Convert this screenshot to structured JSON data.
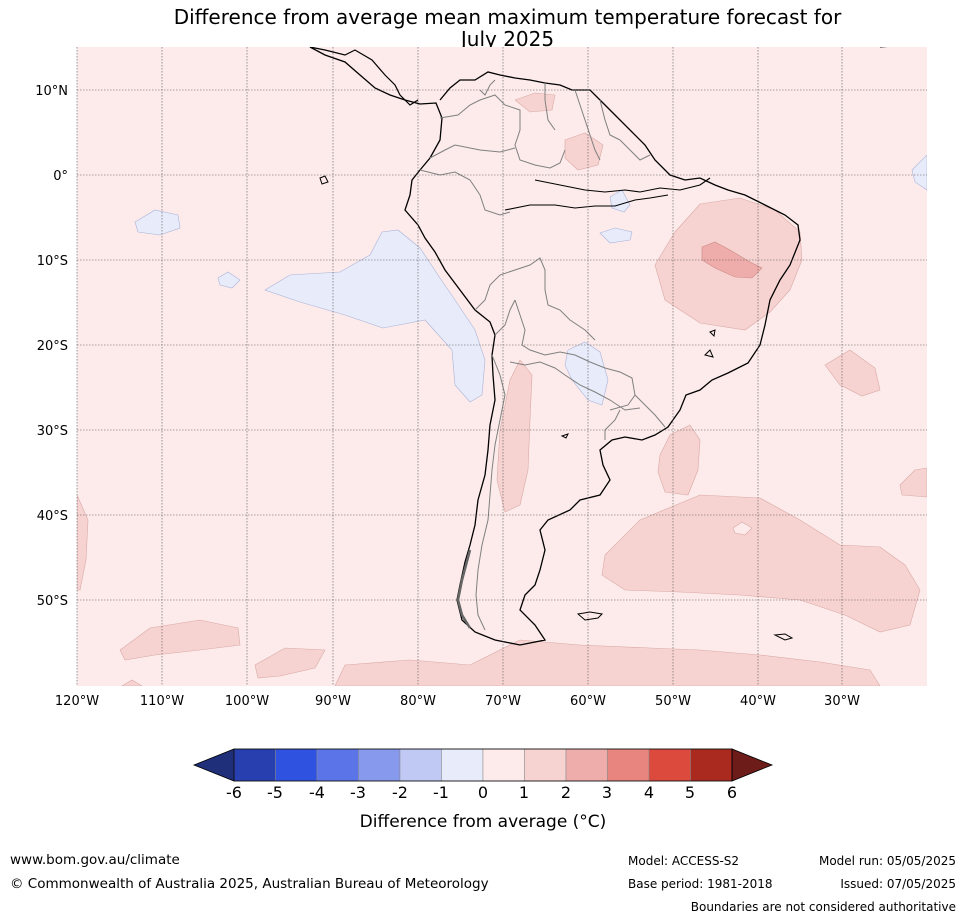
{
  "title": {
    "line1": "Difference from average mean maximum temperature forecast for",
    "line2": "July 2025"
  },
  "map": {
    "lat_labels": [
      "10°N",
      "0°",
      "10°S",
      "20°S",
      "30°S",
      "40°S",
      "50°S"
    ],
    "lon_labels": [
      "120°W",
      "110°W",
      "100°W",
      "90°W",
      "80°W",
      "70°W",
      "60°W",
      "50°W",
      "40°W",
      "30°W"
    ],
    "background_class": "0 to 1",
    "colors": {
      "land_outline": "#000000",
      "border": "#808080",
      "gridline": "#555555"
    }
  },
  "colorbar": {
    "tick_labels": [
      "-6",
      "-5",
      "-4",
      "-3",
      "-2",
      "-1",
      "0",
      "1",
      "2",
      "3",
      "4",
      "5",
      "6"
    ],
    "label": "Difference from average (°C)",
    "under_color": "#1f2f7a",
    "over_color": "#6e1c1a",
    "colors": [
      "#283fb0",
      "#2f52e0",
      "#5b75e8",
      "#8799ec",
      "#c0c8f4",
      "#e8ecfa",
      "#fcebea",
      "#f6d3d1",
      "#eeadaa",
      "#e8857f",
      "#dc4a3e",
      "#aa2a20"
    ]
  },
  "footer": {
    "website": "www.bom.gov.au/climate",
    "copyright": "© Commonwealth of Australia 2025, Australian Bureau of Meteorology",
    "model": "Model: ACCESS-S2",
    "base_period": "Base period: 1981-2018",
    "model_run": "Model run: 05/05/2025",
    "issued": "Issued: 07/05/2025",
    "disclaimer": "Boundaries are not considered authoritative"
  }
}
